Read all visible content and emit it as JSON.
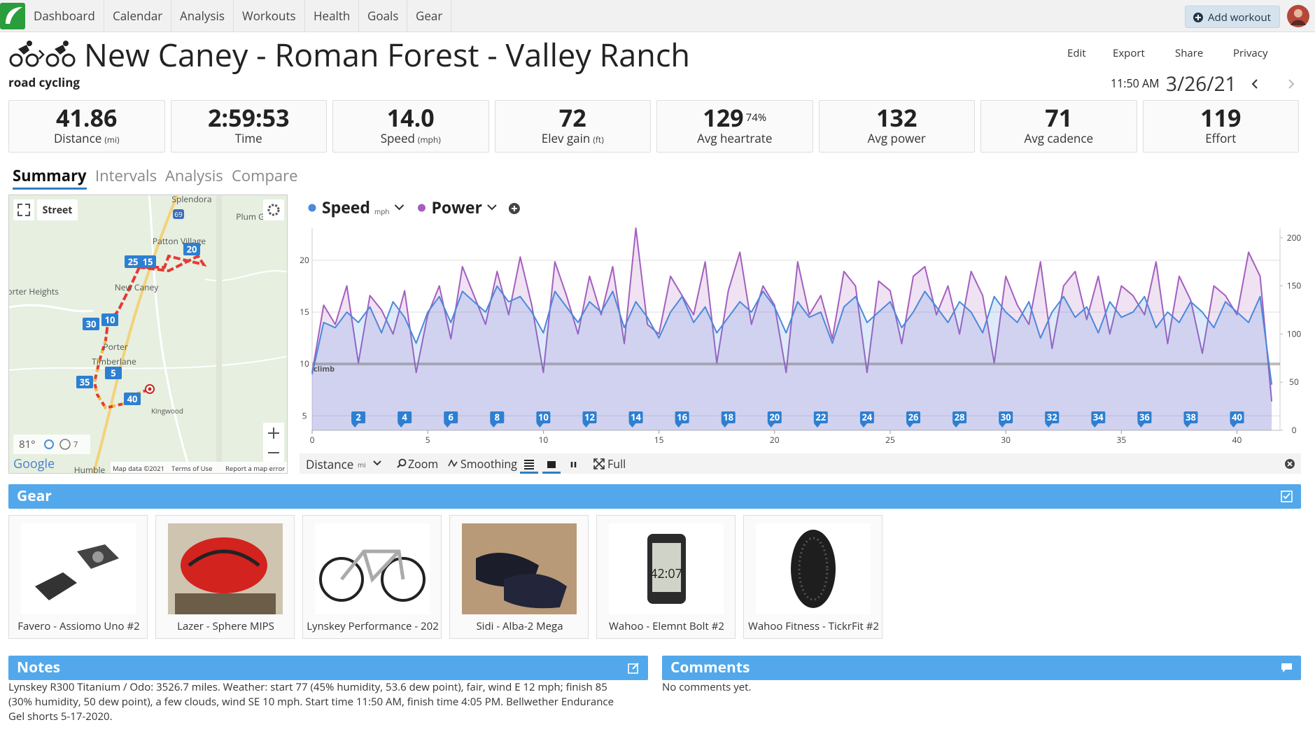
{
  "nav": {
    "items": [
      "Dashboard",
      "Calendar",
      "Analysis",
      "Workouts",
      "Health",
      "Goals",
      "Gear"
    ],
    "add_workout": "Add workout"
  },
  "header": {
    "title": "New Caney - Roman Forest - Valley Ranch",
    "sport": "road cycling",
    "actions": [
      "Edit",
      "Export",
      "Share",
      "Privacy"
    ],
    "time": "11:50 AM",
    "date": "3/26/21"
  },
  "stats": [
    {
      "value": "41.86",
      "label": "Distance",
      "unit": "(mi)"
    },
    {
      "value": "2:59:53",
      "label": "Time"
    },
    {
      "value": "14.0",
      "label": "Speed",
      "unit": "(mph)"
    },
    {
      "value": "72",
      "label": "Elev gain",
      "unit": "(ft)"
    },
    {
      "value": "129",
      "sup": "74%",
      "label": "Avg heartrate"
    },
    {
      "value": "132",
      "label": "Avg power"
    },
    {
      "value": "71",
      "label": "Avg cadence"
    },
    {
      "value": "119",
      "label": "Effort"
    }
  ],
  "tabs": [
    "Summary",
    "Intervals",
    "Analysis",
    "Compare"
  ],
  "map": {
    "layer": "Street",
    "places": [
      "Splendora",
      "Plum Grove",
      "Patton Village",
      "New Caney",
      "Porter Heights",
      "Porter",
      "Timberlane",
      "Kingwood",
      "Humble"
    ],
    "highway": "69",
    "markers": [
      "20",
      "25",
      "15",
      "30",
      "10",
      "5",
      "35",
      "40"
    ],
    "weather": "81°",
    "wind": "7",
    "logo": "Google",
    "footer": [
      "Map data ©2021",
      "Terms of Use",
      "Report a map error"
    ]
  },
  "chart_data": {
    "type": "line",
    "x": [
      0,
      0.5,
      1,
      1.5,
      2,
      2.5,
      3,
      3.5,
      4,
      4.5,
      5,
      5.5,
      6,
      6.5,
      7,
      7.5,
      8,
      8.5,
      9,
      9.5,
      10,
      10.5,
      11,
      11.5,
      12,
      12.5,
      13,
      13.5,
      14,
      14.5,
      15,
      15.5,
      16,
      16.5,
      17,
      17.5,
      18,
      18.5,
      19,
      19.5,
      20,
      20.5,
      21,
      21.5,
      22,
      22.5,
      23,
      23.5,
      24,
      24.5,
      25,
      25.5,
      26,
      26.5,
      27,
      27.5,
      28,
      28.5,
      29,
      29.5,
      30,
      30.5,
      31,
      31.5,
      32,
      32.5,
      33,
      33.5,
      34,
      34.5,
      35,
      35.5,
      36,
      36.5,
      37,
      37.5,
      38,
      38.5,
      39,
      39.5,
      40,
      40.5,
      41,
      41.5
    ],
    "series": [
      {
        "name": "Speed",
        "unit": "mph",
        "color": "#4a89dc",
        "values": [
          9,
          14,
          13.5,
          15,
          14,
          15.5,
          13,
          16,
          14.5,
          12,
          15,
          16.5,
          14,
          17,
          16,
          15,
          17.5,
          16,
          16.5,
          15,
          13,
          17,
          15.5,
          14,
          16,
          15,
          17,
          13.5,
          16,
          14.5,
          12.5,
          15,
          16.5,
          14,
          15.5,
          13,
          14.5,
          16,
          15,
          17,
          15.5,
          13,
          16,
          14.5,
          15,
          12,
          15.5,
          16.5,
          14,
          15,
          16,
          13.5,
          15,
          17,
          15.5,
          14,
          16,
          15,
          13,
          16.5,
          15,
          14,
          16,
          12.5,
          15,
          16.5,
          14.5,
          15.5,
          13,
          16,
          14.5,
          15,
          16.5,
          13.5,
          15,
          14,
          16,
          15,
          13.5,
          16,
          15,
          14,
          16.5,
          8
        ]
      },
      {
        "name": "Power",
        "color": "#a45fbf",
        "axis": "y2",
        "values": [
          60,
          130,
          110,
          150,
          70,
          140,
          125,
          100,
          145,
          60,
          120,
          150,
          95,
          170,
          140,
          110,
          165,
          120,
          180,
          130,
          60,
          175,
          140,
          100,
          160,
          120,
          170,
          90,
          210,
          110,
          100,
          160,
          140,
          120,
          175,
          70,
          145,
          185,
          110,
          150,
          130,
          60,
          175,
          120,
          140,
          95,
          165,
          150,
          60,
          155,
          145,
          90,
          160,
          170,
          120,
          150,
          100,
          165,
          140,
          70,
          160,
          130,
          110,
          175,
          85,
          150,
          165,
          115,
          160,
          100,
          150,
          140,
          120,
          175,
          90,
          160,
          135,
          80,
          150,
          140,
          120,
          185,
          160,
          30
        ]
      }
    ],
    "xlim": [
      0,
      41.86
    ],
    "xticks": [
      0,
      5,
      10,
      15,
      20,
      25,
      30,
      35,
      40
    ],
    "ylim": [
      3.6,
      23.1
    ],
    "yticks": [
      5,
      10,
      15,
      20
    ],
    "y2lim": [
      0,
      210
    ],
    "y2ticks": [
      0,
      50,
      100,
      150,
      200
    ],
    "grid": true,
    "annotations": [
      {
        "text": "climb",
        "x": 0,
        "y": 10
      }
    ],
    "laps": [
      2,
      4,
      6,
      8,
      10,
      12,
      14,
      16,
      18,
      20,
      22,
      24,
      26,
      28,
      30,
      32,
      34,
      36,
      38,
      40
    ]
  },
  "chart_controls": {
    "x_axis": "Distance",
    "x_unit": "mi",
    "zoom": "Zoom",
    "smoothing": "Smoothing",
    "full": "Full"
  },
  "gear": {
    "title": "Gear",
    "items": [
      "Favero - Assiomo Uno #2",
      "Lazer - Sphere MIPS",
      "Lynskey Performance - 202",
      "Sidi - Alba-2 Mega",
      "Wahoo - Elemnt Bolt #2",
      "Wahoo Fitness - TickrFit #2"
    ]
  },
  "notes": {
    "title": "Notes",
    "text": "Lynskey R300 Titanium / Odo: 3526.7 miles. Weather: start 77 (45% humidity, 53.6 dew point), fair, wind E 12 mph; finish 85 (30% humidity, 50 dew point), a few clouds, wind SE 10 mph. Start time 11:50 AM, finish time 4:05 PM. Bellwether Endurance Gel shorts 5-17-2020."
  },
  "comments": {
    "title": "Comments",
    "text": "No comments yet."
  }
}
